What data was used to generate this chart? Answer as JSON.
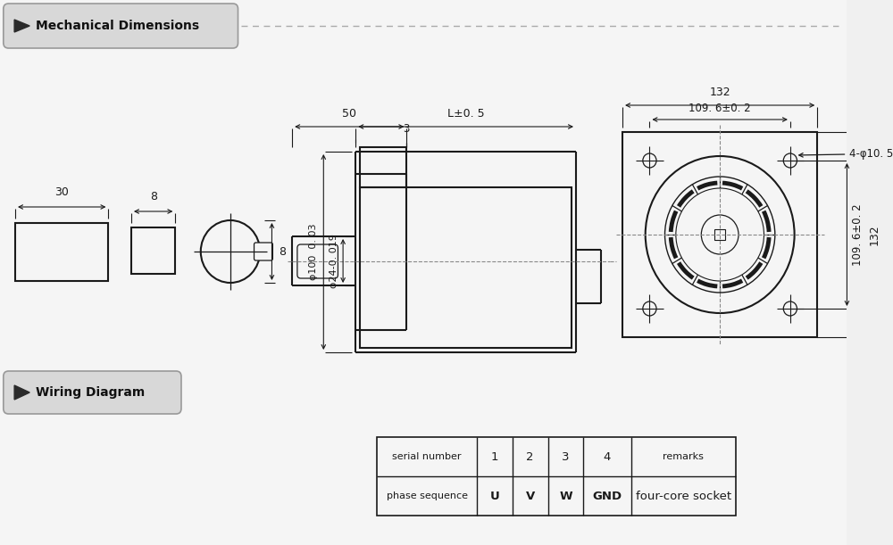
{
  "bg_color": "#f0f0f0",
  "line_color": "#1a1a1a",
  "title1": "Mechanical Dimensions",
  "title2": "Wiring Diagram",
  "dim_50": "50",
  "dim_3": "3",
  "dim_L": "L±0. 5",
  "dim_30": "30",
  "dim_8a": "8",
  "dim_8b": "8",
  "dim_100": "φ100  0. 03",
  "dim_24": "φ24-0. 019",
  "dim_132_top": "132",
  "dim_109_top": "109. 6±0. 2",
  "dim_4phi": "4-φ10. 5",
  "dim_109_side": "109. 6±0. 2",
  "dim_132_side": "132",
  "table_headers": [
    "serial number",
    "1",
    "2",
    "3",
    "4",
    "remarks"
  ],
  "table_row": [
    "phase sequence",
    "U",
    "V",
    "W",
    "GND",
    "four-core socket"
  ]
}
